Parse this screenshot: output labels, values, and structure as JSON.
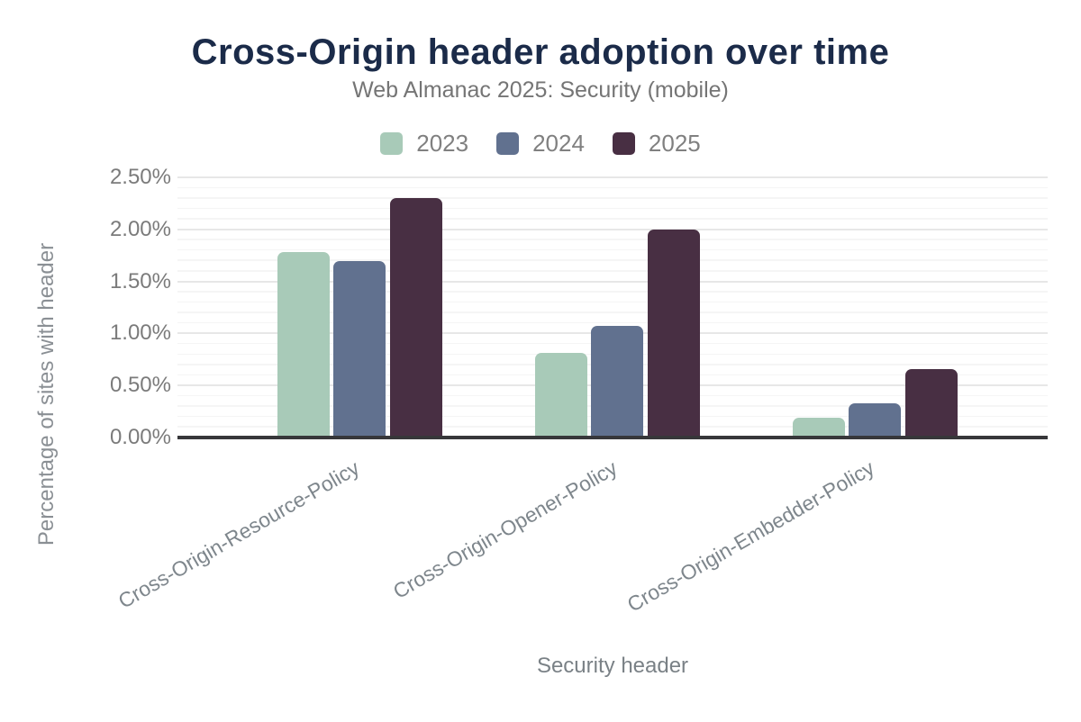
{
  "header": {
    "title": "Cross-Origin header adoption over time",
    "subtitle": "Web Almanac 2025: Security (mobile)"
  },
  "axes": {
    "y_label": "Percentage of sites with header",
    "x_label": "Security header",
    "y_tick_labels": [
      "0.00%",
      "0.50%",
      "1.00%",
      "1.50%",
      "2.00%",
      "2.50%"
    ]
  },
  "style": {
    "title_color": "#1b2b49",
    "subtitle_color": "#757575",
    "tick_label_color": "#7b7b7b",
    "category_label_color": "#7e868c",
    "axis_line_color": "#37373a",
    "major_gridline_color": "#e7e7e7",
    "minor_gridline_color": "#f5f5f5",
    "background_color": "#ffffff"
  },
  "chart_data": {
    "type": "bar",
    "title": "Cross-Origin header adoption over time",
    "subtitle": "Web Almanac 2025: Security (mobile)",
    "xlabel": "Security header",
    "ylabel": "Percentage of sites with header",
    "categories": [
      "Cross-Origin-Resource-Policy",
      "Cross-Origin-Opener-Policy",
      "Cross-Origin-Embedder-Policy"
    ],
    "series": [
      {
        "name": "2023",
        "color": "#a8cab8",
        "values": [
          1.78,
          0.81,
          0.19
        ]
      },
      {
        "name": "2024",
        "color": "#61718f",
        "values": [
          1.7,
          1.07,
          0.33
        ]
      },
      {
        "name": "2025",
        "color": "#482f43",
        "values": [
          2.3,
          2.0,
          0.66
        ]
      }
    ],
    "ylim": [
      0,
      2.5
    ],
    "ytick_step": 0.5,
    "ytick_minor_step": 0.1,
    "ytick_format": "0.00%",
    "grid": "horizontal-major-and-minor",
    "legend_position": "top",
    "category_label_rotation_deg": -30
  }
}
